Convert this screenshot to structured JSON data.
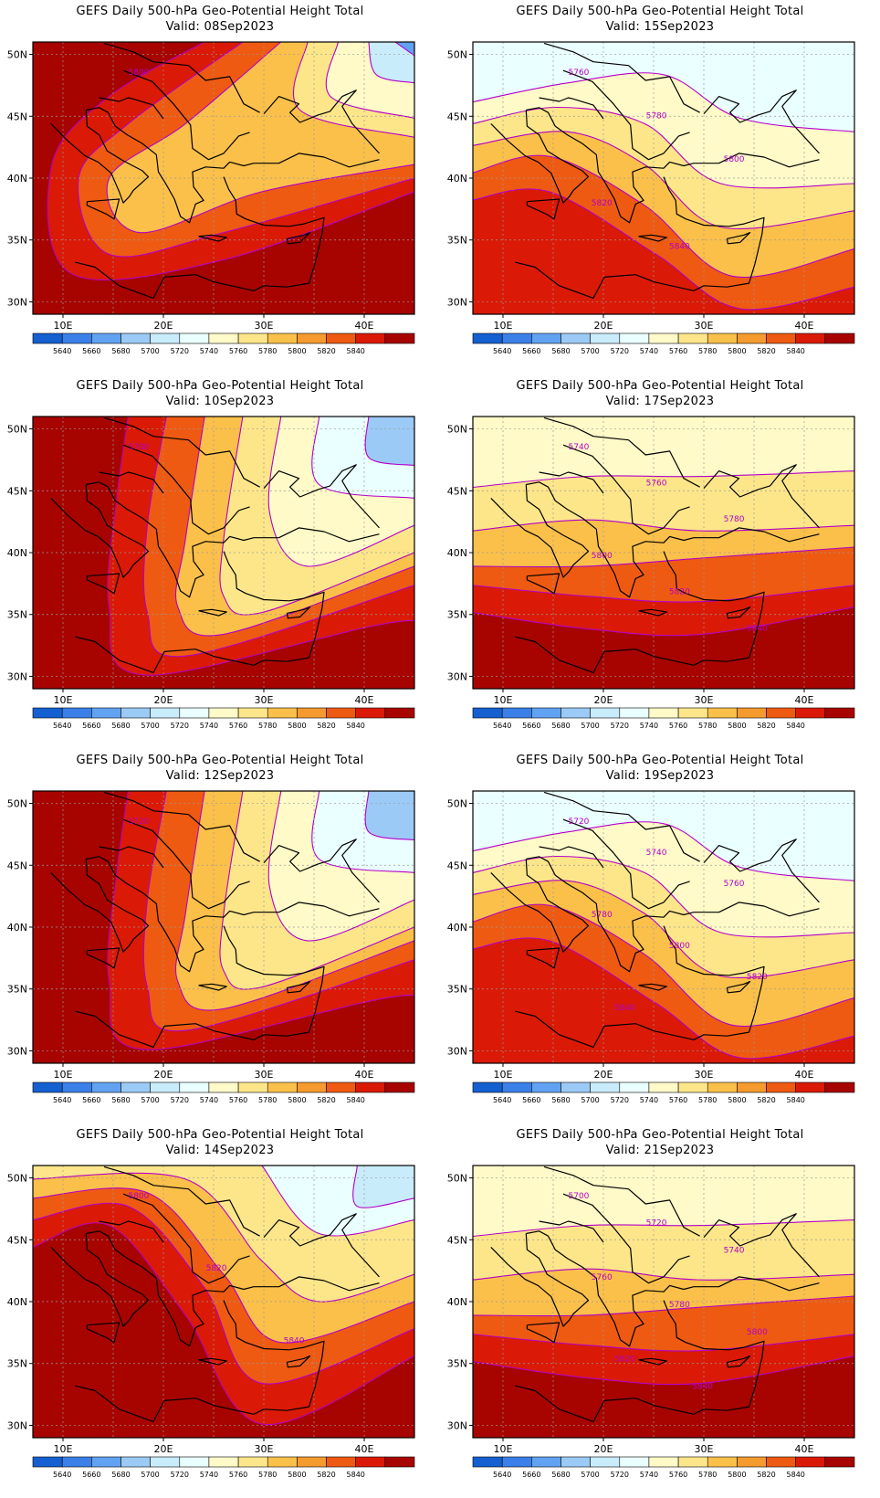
{
  "panels": [
    {
      "title": "GEFS Daily 500-hPa Geo-Potential Height Total",
      "valid": "Valid: 08Sep2023",
      "contour_labels": [
        "5800"
      ]
    },
    {
      "title": "GEFS Daily 500-hPa Geo-Potential Height Total",
      "valid": "Valid: 15Sep2023",
      "contour_labels": [
        "5760",
        "5780",
        "5800",
        "5820",
        "5840"
      ]
    },
    {
      "title": "GEFS Daily 500-hPa Geo-Potential Height Total",
      "valid": "Valid: 10Sep2023",
      "contour_labels": [
        "5780"
      ]
    },
    {
      "title": "GEFS Daily 500-hPa Geo-Potential Height Total",
      "valid": "Valid: 17Sep2023",
      "contour_labels": [
        "5740",
        "5760",
        "5780",
        "5800",
        "5820",
        "5840"
      ]
    },
    {
      "title": "GEFS Daily 500-hPa Geo-Potential Height Total",
      "valid": "Valid: 12Sep2023",
      "contour_labels": [
        "5720"
      ]
    },
    {
      "title": "GEFS Daily 500-hPa Geo-Potential Height Total",
      "valid": "Valid: 19Sep2023",
      "contour_labels": [
        "5720",
        "5740",
        "5760",
        "5780",
        "5800",
        "5820",
        "5840"
      ]
    },
    {
      "title": "GEFS Daily 500-hPa Geo-Potential Height Total",
      "valid": "Valid: 14Sep2023",
      "contour_labels": [
        "5800",
        "5820",
        "5840"
      ]
    },
    {
      "title": "GEFS Daily 500-hPa Geo-Potential Height Total",
      "valid": "Valid: 21Sep2023",
      "contour_labels": [
        "5700",
        "5720",
        "5740",
        "5760",
        "5780",
        "5800",
        "5820",
        "5840"
      ]
    }
  ],
  "axes": {
    "lat_ticks": [
      "50N",
      "45N",
      "40N",
      "35N",
      "30N"
    ],
    "lon_ticks": [
      "10E",
      "20E",
      "30E",
      "40E"
    ]
  },
  "colorbar": {
    "labels": [
      "5640",
      "5660",
      "5680",
      "5700",
      "5720",
      "5740",
      "5760",
      "5780",
      "5800",
      "5820",
      "5840"
    ],
    "colors": [
      "#1560d0",
      "#3a80e8",
      "#62a2f2",
      "#9ccaf6",
      "#c8ecfa",
      "#eaffff",
      "#fffac8",
      "#fde68a",
      "#fbc04a",
      "#f49a2e",
      "#ee5a12",
      "#da1a06",
      "#a70400"
    ]
  }
}
